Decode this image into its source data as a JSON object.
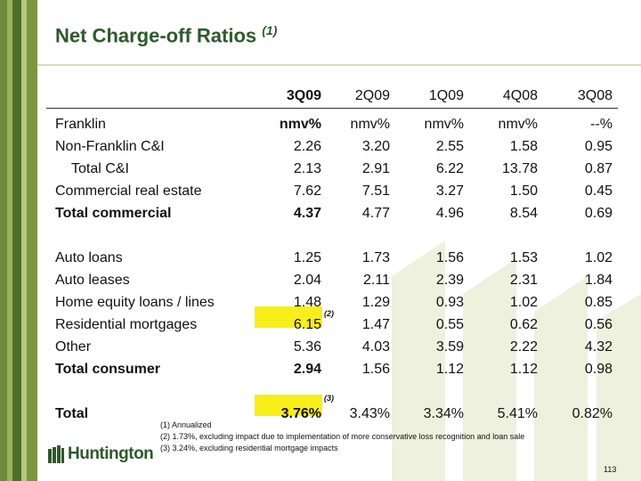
{
  "title": "Net Charge-off Ratios",
  "title_note": "(1)",
  "columns": [
    "3Q09",
    "2Q09",
    "1Q09",
    "4Q08",
    "3Q08"
  ],
  "rows": [
    {
      "label": "Franklin",
      "values": [
        "nmv%",
        "nmv%",
        "nmv%",
        "nmv%",
        "--%"
      ]
    },
    {
      "label": "Non-Franklin C&I",
      "values": [
        "2.26",
        "3.20",
        "2.55",
        "1.58",
        "0.95"
      ]
    },
    {
      "label": "Total C&I",
      "values": [
        "2.13",
        "2.91",
        "6.22",
        "13.78",
        "0.87"
      ]
    },
    {
      "label": "Commercial real estate",
      "values": [
        "7.62",
        "7.51",
        "3.27",
        "1.50",
        "0.45"
      ]
    },
    {
      "label": "Total commercial",
      "values": [
        "4.37",
        "4.77",
        "4.96",
        "8.54",
        "0.69"
      ]
    },
    {
      "label": "Auto loans",
      "values": [
        "1.25",
        "1.73",
        "1.56",
        "1.53",
        "1.02"
      ]
    },
    {
      "label": "Auto leases",
      "values": [
        "2.04",
        "2.11",
        "2.39",
        "2.31",
        "1.84"
      ]
    },
    {
      "label": "Home equity loans / lines",
      "values": [
        "1.48",
        "1.29",
        "0.93",
        "1.02",
        "0.85"
      ]
    },
    {
      "label": "Residential mortgages",
      "values": [
        "6.15",
        "1.47",
        "0.55",
        "0.62",
        "0.56"
      ]
    },
    {
      "label": "Other",
      "values": [
        "5.36",
        "4.03",
        "3.59",
        "2.22",
        "4.32"
      ]
    },
    {
      "label": "Total consumer",
      "values": [
        "2.94",
        "1.56",
        "1.12",
        "1.12",
        "0.98"
      ]
    },
    {
      "label": "Total",
      "values": [
        "3.76%",
        "3.43%",
        "3.34%",
        "5.41%",
        "0.82%"
      ]
    }
  ],
  "cell_notes": {
    "residential_mortgages": "(2)",
    "total": "(3)"
  },
  "footnotes": [
    "(1)  Annualized",
    "(2)  1.73%, excluding impact due to implementation of more conservative loss recognition and loan sale",
    "(3)  3.24%, excluding residential mortgage impacts"
  ],
  "logo_text": "Huntington",
  "page_number": "113",
  "colors": {
    "brand_green": "#2e5a2b",
    "highlight": "#f7ee1a"
  }
}
